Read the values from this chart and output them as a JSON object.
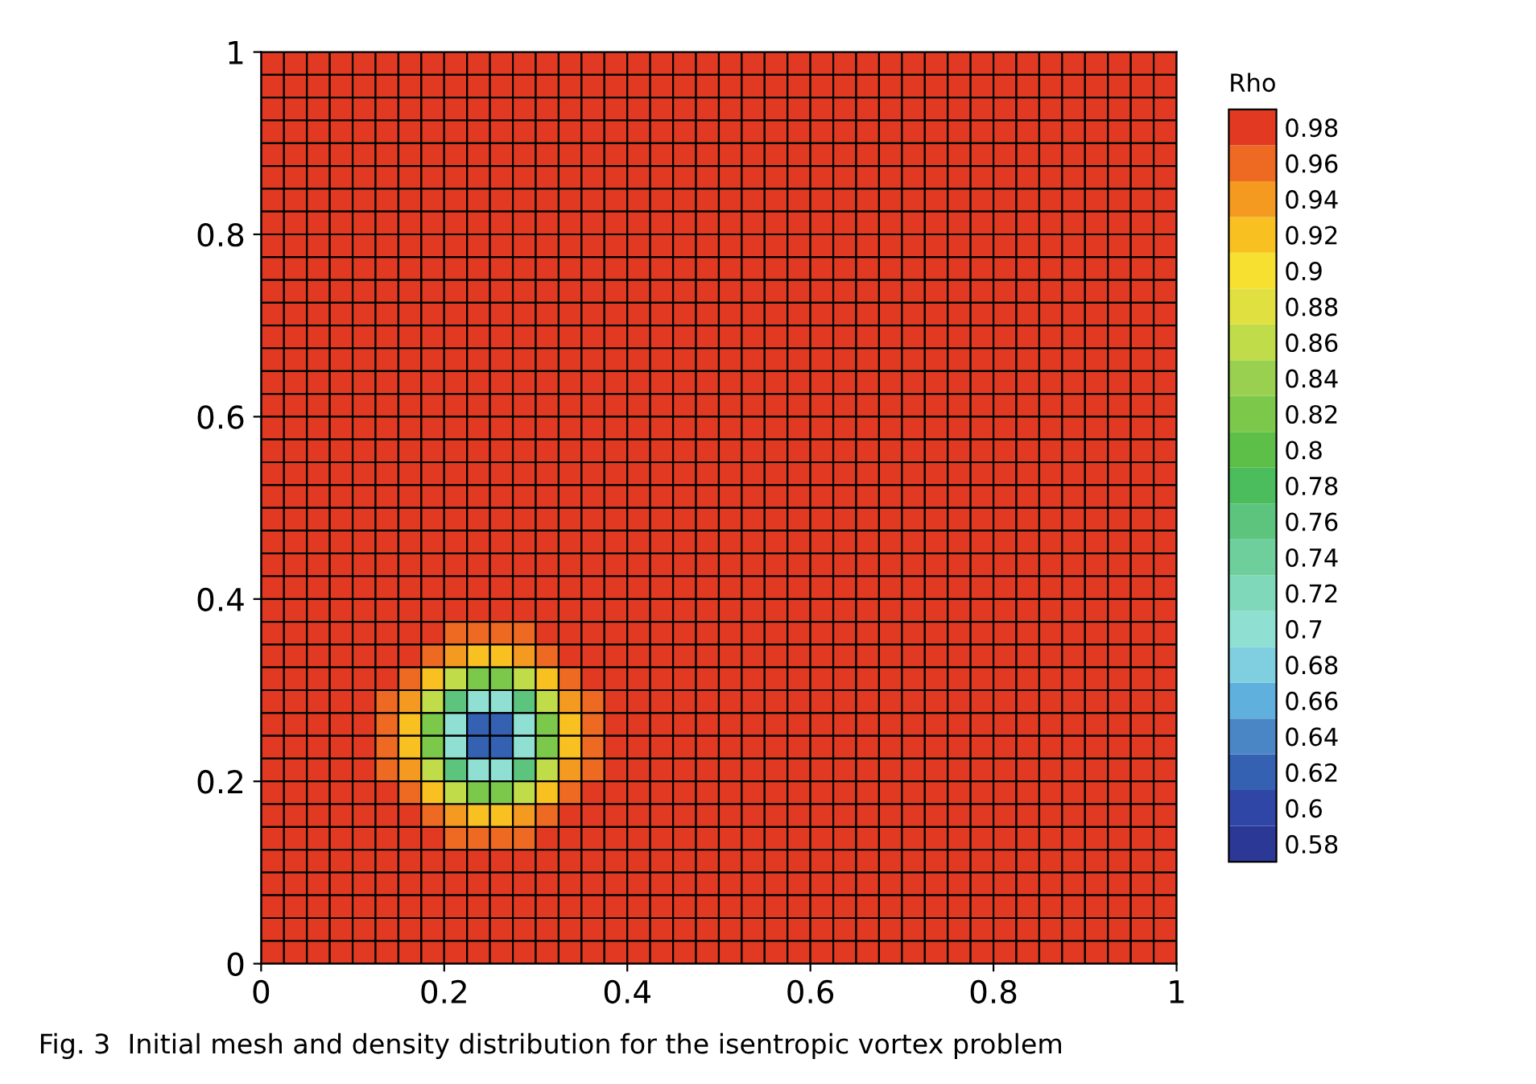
{
  "chart_data": {
    "type": "heatmap",
    "clabel": "Rho",
    "annotations": [
      "Fig. 3  Initial mesh and density distribution for the isentropic vortex problem"
    ],
    "x": [
      0.0125,
      0.0375,
      0.0625,
      0.0875,
      0.1125,
      0.1375,
      0.1625,
      0.1875,
      0.2125,
      0.2375,
      0.2625,
      0.2875,
      0.3125,
      0.3375,
      0.3625,
      0.3875,
      0.4125,
      0.4375,
      0.4625,
      0.4875,
      0.5125,
      0.5375,
      0.5625,
      0.5875,
      0.6125,
      0.6375,
      0.6625,
      0.6875,
      0.7125,
      0.7375,
      0.7625,
      0.7875,
      0.8125,
      0.8375,
      0.8625,
      0.8875,
      0.9125,
      0.9375,
      0.9625,
      0.9875
    ],
    "y": [
      0.9875,
      0.9625,
      0.9375,
      0.9125,
      0.8875,
      0.8625,
      0.8375,
      0.8125,
      0.7875,
      0.7625,
      0.7375,
      0.7125,
      0.6875,
      0.6625,
      0.6375,
      0.6125,
      0.5875,
      0.5625,
      0.5375,
      0.5125,
      0.4875,
      0.4625,
      0.4375,
      0.4125,
      0.3875,
      0.3625,
      0.3375,
      0.3125,
      0.2875,
      0.2625,
      0.2375,
      0.2125,
      0.1875,
      0.1625,
      0.1375,
      0.1125,
      0.0875,
      0.0625,
      0.0375,
      0.0125
    ],
    "xlim": [
      0,
      1
    ],
    "ylim": [
      0,
      1
    ],
    "xticks": [
      0,
      0.2,
      0.4,
      0.6,
      0.8,
      1
    ],
    "yticks": [
      0,
      0.2,
      0.4,
      0.6,
      0.8,
      1
    ],
    "clim": [
      0.57,
      0.99
    ],
    "cticks": [
      0.58,
      0.6,
      0.62,
      0.64,
      0.66,
      0.68,
      0.7,
      0.72,
      0.74,
      0.76,
      0.78,
      0.8,
      0.82,
      0.84,
      0.86,
      0.88,
      0.9,
      0.92,
      0.94,
      0.96,
      0.98
    ],
    "colors": [
      "#2b3896",
      "#2f46a6",
      "#3461b2",
      "#4a86c6",
      "#5fb0dc",
      "#80cfe0",
      "#8fe0d2",
      "#7fd8ba",
      "#6fcf9c",
      "#5cc47c",
      "#4cbd5c",
      "#5ebf48",
      "#7cc84a",
      "#9ad050",
      "#c0dc48",
      "#e0e040",
      "#f8e030",
      "#f8c020",
      "#f49a20",
      "#ee6a22",
      "#e23a22"
    ],
    "cells": [
      [
        0.98,
        0.98,
        0.98,
        0.98,
        0.98,
        0.98,
        0.98,
        0.98,
        0.98,
        0.98,
        0.98,
        0.98,
        0.98,
        0.98,
        0.98,
        0.98,
        0.98,
        0.98,
        0.98,
        0.98,
        0.98,
        0.98,
        0.98,
        0.98,
        0.98,
        0.98,
        0.98,
        0.98,
        0.98,
        0.98,
        0.98,
        0.98,
        0.98,
        0.98,
        0.98,
        0.98,
        0.98,
        0.98,
        0.98,
        0.98
      ],
      [
        0.98,
        0.98,
        0.98,
        0.98,
        0.98,
        0.98,
        0.98,
        0.98,
        0.98,
        0.98,
        0.98,
        0.98,
        0.98,
        0.98,
        0.98,
        0.98,
        0.98,
        0.98,
        0.98,
        0.98,
        0.98,
        0.98,
        0.98,
        0.98,
        0.98,
        0.98,
        0.98,
        0.98,
        0.98,
        0.98,
        0.98,
        0.98,
        0.98,
        0.98,
        0.98,
        0.98,
        0.98,
        0.98,
        0.98,
        0.98
      ],
      [
        0.98,
        0.98,
        0.98,
        0.98,
        0.98,
        0.98,
        0.98,
        0.98,
        0.98,
        0.98,
        0.98,
        0.98,
        0.98,
        0.98,
        0.98,
        0.98,
        0.98,
        0.98,
        0.98,
        0.98,
        0.98,
        0.98,
        0.98,
        0.98,
        0.98,
        0.98,
        0.98,
        0.98,
        0.98,
        0.98,
        0.98,
        0.98,
        0.98,
        0.98,
        0.98,
        0.98,
        0.98,
        0.98,
        0.98,
        0.98
      ],
      [
        0.98,
        0.98,
        0.98,
        0.98,
        0.98,
        0.98,
        0.98,
        0.98,
        0.98,
        0.98,
        0.98,
        0.98,
        0.98,
        0.98,
        0.98,
        0.98,
        0.98,
        0.98,
        0.98,
        0.98,
        0.98,
        0.98,
        0.98,
        0.98,
        0.98,
        0.98,
        0.98,
        0.98,
        0.98,
        0.98,
        0.98,
        0.98,
        0.98,
        0.98,
        0.98,
        0.98,
        0.98,
        0.98,
        0.98,
        0.98
      ],
      [
        0.98,
        0.98,
        0.98,
        0.98,
        0.98,
        0.98,
        0.98,
        0.98,
        0.98,
        0.98,
        0.98,
        0.98,
        0.98,
        0.98,
        0.98,
        0.98,
        0.98,
        0.98,
        0.98,
        0.98,
        0.98,
        0.98,
        0.98,
        0.98,
        0.98,
        0.98,
        0.98,
        0.98,
        0.98,
        0.98,
        0.98,
        0.98,
        0.98,
        0.98,
        0.98,
        0.98,
        0.98,
        0.98,
        0.98,
        0.98
      ],
      [
        0.98,
        0.98,
        0.98,
        0.98,
        0.98,
        0.98,
        0.98,
        0.98,
        0.98,
        0.98,
        0.98,
        0.98,
        0.98,
        0.98,
        0.98,
        0.98,
        0.98,
        0.98,
        0.98,
        0.98,
        0.98,
        0.98,
        0.98,
        0.98,
        0.98,
        0.98,
        0.98,
        0.98,
        0.98,
        0.98,
        0.98,
        0.98,
        0.98,
        0.98,
        0.98,
        0.98,
        0.98,
        0.98,
        0.98,
        0.98
      ],
      [
        0.98,
        0.98,
        0.98,
        0.98,
        0.98,
        0.98,
        0.98,
        0.98,
        0.98,
        0.98,
        0.98,
        0.98,
        0.98,
        0.98,
        0.98,
        0.98,
        0.98,
        0.98,
        0.98,
        0.98,
        0.98,
        0.98,
        0.98,
        0.98,
        0.98,
        0.98,
        0.98,
        0.98,
        0.98,
        0.98,
        0.98,
        0.98,
        0.98,
        0.98,
        0.98,
        0.98,
        0.98,
        0.98,
        0.98,
        0.98
      ],
      [
        0.98,
        0.98,
        0.98,
        0.98,
        0.98,
        0.98,
        0.98,
        0.98,
        0.98,
        0.98,
        0.98,
        0.98,
        0.98,
        0.98,
        0.98,
        0.98,
        0.98,
        0.98,
        0.98,
        0.98,
        0.98,
        0.98,
        0.98,
        0.98,
        0.98,
        0.98,
        0.98,
        0.98,
        0.98,
        0.98,
        0.98,
        0.98,
        0.98,
        0.98,
        0.98,
        0.98,
        0.98,
        0.98,
        0.98,
        0.98
      ],
      [
        0.98,
        0.98,
        0.98,
        0.98,
        0.98,
        0.98,
        0.98,
        0.98,
        0.98,
        0.98,
        0.98,
        0.98,
        0.98,
        0.98,
        0.98,
        0.98,
        0.98,
        0.98,
        0.98,
        0.98,
        0.98,
        0.98,
        0.98,
        0.98,
        0.98,
        0.98,
        0.98,
        0.98,
        0.98,
        0.98,
        0.98,
        0.98,
        0.98,
        0.98,
        0.98,
        0.98,
        0.98,
        0.98,
        0.98,
        0.98
      ],
      [
        0.98,
        0.98,
        0.98,
        0.98,
        0.98,
        0.98,
        0.98,
        0.98,
        0.98,
        0.98,
        0.98,
        0.98,
        0.98,
        0.98,
        0.98,
        0.98,
        0.98,
        0.98,
        0.98,
        0.98,
        0.98,
        0.98,
        0.98,
        0.98,
        0.98,
        0.98,
        0.98,
        0.98,
        0.98,
        0.98,
        0.98,
        0.98,
        0.98,
        0.98,
        0.98,
        0.98,
        0.98,
        0.98,
        0.98,
        0.98
      ],
      [
        0.98,
        0.98,
        0.98,
        0.98,
        0.98,
        0.98,
        0.98,
        0.98,
        0.98,
        0.98,
        0.98,
        0.98,
        0.98,
        0.98,
        0.98,
        0.98,
        0.98,
        0.98,
        0.98,
        0.98,
        0.98,
        0.98,
        0.98,
        0.98,
        0.98,
        0.98,
        0.98,
        0.98,
        0.98,
        0.98,
        0.98,
        0.98,
        0.98,
        0.98,
        0.98,
        0.98,
        0.98,
        0.98,
        0.98,
        0.98
      ],
      [
        0.98,
        0.98,
        0.98,
        0.98,
        0.98,
        0.98,
        0.98,
        0.98,
        0.98,
        0.98,
        0.98,
        0.98,
        0.98,
        0.98,
        0.98,
        0.98,
        0.98,
        0.98,
        0.98,
        0.98,
        0.98,
        0.98,
        0.98,
        0.98,
        0.98,
        0.98,
        0.98,
        0.98,
        0.98,
        0.98,
        0.98,
        0.98,
        0.98,
        0.98,
        0.98,
        0.98,
        0.98,
        0.98,
        0.98,
        0.98
      ],
      [
        0.98,
        0.98,
        0.98,
        0.98,
        0.98,
        0.98,
        0.98,
        0.98,
        0.98,
        0.98,
        0.98,
        0.98,
        0.98,
        0.98,
        0.98,
        0.98,
        0.98,
        0.98,
        0.98,
        0.98,
        0.98,
        0.98,
        0.98,
        0.98,
        0.98,
        0.98,
        0.98,
        0.98,
        0.98,
        0.98,
        0.98,
        0.98,
        0.98,
        0.98,
        0.98,
        0.98,
        0.98,
        0.98,
        0.98,
        0.98
      ],
      [
        0.98,
        0.98,
        0.98,
        0.98,
        0.98,
        0.98,
        0.98,
        0.98,
        0.98,
        0.98,
        0.98,
        0.98,
        0.98,
        0.98,
        0.98,
        0.98,
        0.98,
        0.98,
        0.98,
        0.98,
        0.98,
        0.98,
        0.98,
        0.98,
        0.98,
        0.98,
        0.98,
        0.98,
        0.98,
        0.98,
        0.98,
        0.98,
        0.98,
        0.98,
        0.98,
        0.98,
        0.98,
        0.98,
        0.98,
        0.98
      ],
      [
        0.98,
        0.98,
        0.98,
        0.98,
        0.98,
        0.98,
        0.98,
        0.98,
        0.98,
        0.98,
        0.98,
        0.98,
        0.98,
        0.98,
        0.98,
        0.98,
        0.98,
        0.98,
        0.98,
        0.98,
        0.98,
        0.98,
        0.98,
        0.98,
        0.98,
        0.98,
        0.98,
        0.98,
        0.98,
        0.98,
        0.98,
        0.98,
        0.98,
        0.98,
        0.98,
        0.98,
        0.98,
        0.98,
        0.98,
        0.98
      ],
      [
        0.98,
        0.98,
        0.98,
        0.98,
        0.98,
        0.98,
        0.98,
        0.98,
        0.98,
        0.98,
        0.98,
        0.98,
        0.98,
        0.98,
        0.98,
        0.98,
        0.98,
        0.98,
        0.98,
        0.98,
        0.98,
        0.98,
        0.98,
        0.98,
        0.98,
        0.98,
        0.98,
        0.98,
        0.98,
        0.98,
        0.98,
        0.98,
        0.98,
        0.98,
        0.98,
        0.98,
        0.98,
        0.98,
        0.98,
        0.98
      ],
      [
        0.98,
        0.98,
        0.98,
        0.98,
        0.98,
        0.98,
        0.98,
        0.98,
        0.98,
        0.98,
        0.98,
        0.98,
        0.98,
        0.98,
        0.98,
        0.98,
        0.98,
        0.98,
        0.98,
        0.98,
        0.98,
        0.98,
        0.98,
        0.98,
        0.98,
        0.98,
        0.98,
        0.98,
        0.98,
        0.98,
        0.98,
        0.98,
        0.98,
        0.98,
        0.98,
        0.98,
        0.98,
        0.98,
        0.98,
        0.98
      ],
      [
        0.98,
        0.98,
        0.98,
        0.98,
        0.98,
        0.98,
        0.98,
        0.98,
        0.98,
        0.98,
        0.98,
        0.98,
        0.98,
        0.98,
        0.98,
        0.98,
        0.98,
        0.98,
        0.98,
        0.98,
        0.98,
        0.98,
        0.98,
        0.98,
        0.98,
        0.98,
        0.98,
        0.98,
        0.98,
        0.98,
        0.98,
        0.98,
        0.98,
        0.98,
        0.98,
        0.98,
        0.98,
        0.98,
        0.98,
        0.98
      ],
      [
        0.98,
        0.98,
        0.98,
        0.98,
        0.98,
        0.98,
        0.98,
        0.98,
        0.98,
        0.98,
        0.98,
        0.98,
        0.98,
        0.98,
        0.98,
        0.98,
        0.98,
        0.98,
        0.98,
        0.98,
        0.98,
        0.98,
        0.98,
        0.98,
        0.98,
        0.98,
        0.98,
        0.98,
        0.98,
        0.98,
        0.98,
        0.98,
        0.98,
        0.98,
        0.98,
        0.98,
        0.98,
        0.98,
        0.98,
        0.98
      ],
      [
        0.98,
        0.98,
        0.98,
        0.98,
        0.98,
        0.98,
        0.98,
        0.98,
        0.98,
        0.98,
        0.98,
        0.98,
        0.98,
        0.98,
        0.98,
        0.98,
        0.98,
        0.98,
        0.98,
        0.98,
        0.98,
        0.98,
        0.98,
        0.98,
        0.98,
        0.98,
        0.98,
        0.98,
        0.98,
        0.98,
        0.98,
        0.98,
        0.98,
        0.98,
        0.98,
        0.98,
        0.98,
        0.98,
        0.98,
        0.98
      ],
      [
        0.98,
        0.98,
        0.98,
        0.98,
        0.98,
        0.98,
        0.98,
        0.98,
        0.98,
        0.98,
        0.98,
        0.98,
        0.98,
        0.98,
        0.98,
        0.98,
        0.98,
        0.98,
        0.98,
        0.98,
        0.98,
        0.98,
        0.98,
        0.98,
        0.98,
        0.98,
        0.98,
        0.98,
        0.98,
        0.98,
        0.98,
        0.98,
        0.98,
        0.98,
        0.98,
        0.98,
        0.98,
        0.98,
        0.98,
        0.98
      ],
      [
        0.98,
        0.98,
        0.98,
        0.98,
        0.98,
        0.98,
        0.98,
        0.98,
        0.98,
        0.98,
        0.98,
        0.98,
        0.98,
        0.98,
        0.98,
        0.98,
        0.98,
        0.98,
        0.98,
        0.98,
        0.98,
        0.98,
        0.98,
        0.98,
        0.98,
        0.98,
        0.98,
        0.98,
        0.98,
        0.98,
        0.98,
        0.98,
        0.98,
        0.98,
        0.98,
        0.98,
        0.98,
        0.98,
        0.98,
        0.98
      ],
      [
        0.98,
        0.98,
        0.98,
        0.98,
        0.98,
        0.98,
        0.98,
        0.98,
        0.98,
        0.98,
        0.98,
        0.98,
        0.98,
        0.98,
        0.98,
        0.98,
        0.98,
        0.98,
        0.98,
        0.98,
        0.98,
        0.98,
        0.98,
        0.98,
        0.98,
        0.98,
        0.98,
        0.98,
        0.98,
        0.98,
        0.98,
        0.98,
        0.98,
        0.98,
        0.98,
        0.98,
        0.98,
        0.98,
        0.98,
        0.98
      ],
      [
        0.98,
        0.98,
        0.98,
        0.98,
        0.98,
        0.98,
        0.98,
        0.98,
        0.98,
        0.98,
        0.98,
        0.98,
        0.98,
        0.98,
        0.98,
        0.98,
        0.98,
        0.98,
        0.98,
        0.98,
        0.98,
        0.98,
        0.98,
        0.98,
        0.98,
        0.98,
        0.98,
        0.98,
        0.98,
        0.98,
        0.98,
        0.98,
        0.98,
        0.98,
        0.98,
        0.98,
        0.98,
        0.98,
        0.98,
        0.98
      ],
      [
        0.98,
        0.98,
        0.98,
        0.98,
        0.98,
        0.98,
        0.98,
        0.98,
        0.98,
        0.98,
        0.98,
        0.98,
        0.98,
        0.98,
        0.98,
        0.98,
        0.98,
        0.98,
        0.98,
        0.98,
        0.98,
        0.98,
        0.98,
        0.98,
        0.98,
        0.98,
        0.98,
        0.98,
        0.98,
        0.98,
        0.98,
        0.98,
        0.98,
        0.98,
        0.98,
        0.98,
        0.98,
        0.98,
        0.98,
        0.98
      ],
      [
        0.98,
        0.98,
        0.98,
        0.98,
        0.98,
        0.98,
        0.98,
        0.98,
        0.96,
        0.96,
        0.96,
        0.96,
        0.98,
        0.98,
        0.98,
        0.98,
        0.98,
        0.98,
        0.98,
        0.98,
        0.98,
        0.98,
        0.98,
        0.98,
        0.98,
        0.98,
        0.98,
        0.98,
        0.98,
        0.98,
        0.98,
        0.98,
        0.98,
        0.98,
        0.98,
        0.98,
        0.98,
        0.98,
        0.98,
        0.98
      ],
      [
        0.98,
        0.98,
        0.98,
        0.98,
        0.98,
        0.98,
        0.98,
        0.96,
        0.94,
        0.92,
        0.92,
        0.94,
        0.96,
        0.98,
        0.98,
        0.98,
        0.98,
        0.98,
        0.98,
        0.98,
        0.98,
        0.98,
        0.98,
        0.98,
        0.98,
        0.98,
        0.98,
        0.98,
        0.98,
        0.98,
        0.98,
        0.98,
        0.98,
        0.98,
        0.98,
        0.98,
        0.98,
        0.98,
        0.98,
        0.98
      ],
      [
        0.98,
        0.98,
        0.98,
        0.98,
        0.98,
        0.98,
        0.96,
        0.92,
        0.86,
        0.82,
        0.82,
        0.86,
        0.92,
        0.96,
        0.98,
        0.98,
        0.98,
        0.98,
        0.98,
        0.98,
        0.98,
        0.98,
        0.98,
        0.98,
        0.98,
        0.98,
        0.98,
        0.98,
        0.98,
        0.98,
        0.98,
        0.98,
        0.98,
        0.98,
        0.98,
        0.98,
        0.98,
        0.98,
        0.98,
        0.98
      ],
      [
        0.98,
        0.98,
        0.98,
        0.98,
        0.98,
        0.96,
        0.94,
        0.86,
        0.76,
        0.7,
        0.7,
        0.76,
        0.86,
        0.94,
        0.96,
        0.98,
        0.98,
        0.98,
        0.98,
        0.98,
        0.98,
        0.98,
        0.98,
        0.98,
        0.98,
        0.98,
        0.98,
        0.98,
        0.98,
        0.98,
        0.98,
        0.98,
        0.98,
        0.98,
        0.98,
        0.98,
        0.98,
        0.98,
        0.98,
        0.98
      ],
      [
        0.98,
        0.98,
        0.98,
        0.98,
        0.98,
        0.96,
        0.92,
        0.82,
        0.7,
        0.62,
        0.62,
        0.7,
        0.82,
        0.92,
        0.96,
        0.98,
        0.98,
        0.98,
        0.98,
        0.98,
        0.98,
        0.98,
        0.98,
        0.98,
        0.98,
        0.98,
        0.98,
        0.98,
        0.98,
        0.98,
        0.98,
        0.98,
        0.98,
        0.98,
        0.98,
        0.98,
        0.98,
        0.98,
        0.98,
        0.98
      ],
      [
        0.98,
        0.98,
        0.98,
        0.98,
        0.98,
        0.96,
        0.92,
        0.82,
        0.7,
        0.62,
        0.62,
        0.7,
        0.82,
        0.92,
        0.96,
        0.98,
        0.98,
        0.98,
        0.98,
        0.98,
        0.98,
        0.98,
        0.98,
        0.98,
        0.98,
        0.98,
        0.98,
        0.98,
        0.98,
        0.98,
        0.98,
        0.98,
        0.98,
        0.98,
        0.98,
        0.98,
        0.98,
        0.98,
        0.98,
        0.98
      ],
      [
        0.98,
        0.98,
        0.98,
        0.98,
        0.98,
        0.96,
        0.94,
        0.86,
        0.76,
        0.7,
        0.7,
        0.76,
        0.86,
        0.94,
        0.96,
        0.98,
        0.98,
        0.98,
        0.98,
        0.98,
        0.98,
        0.98,
        0.98,
        0.98,
        0.98,
        0.98,
        0.98,
        0.98,
        0.98,
        0.98,
        0.98,
        0.98,
        0.98,
        0.98,
        0.98,
        0.98,
        0.98,
        0.98,
        0.98,
        0.98
      ],
      [
        0.98,
        0.98,
        0.98,
        0.98,
        0.98,
        0.98,
        0.96,
        0.92,
        0.86,
        0.82,
        0.82,
        0.86,
        0.92,
        0.96,
        0.98,
        0.98,
        0.98,
        0.98,
        0.98,
        0.98,
        0.98,
        0.98,
        0.98,
        0.98,
        0.98,
        0.98,
        0.98,
        0.98,
        0.98,
        0.98,
        0.98,
        0.98,
        0.98,
        0.98,
        0.98,
        0.98,
        0.98,
        0.98,
        0.98,
        0.98
      ],
      [
        0.98,
        0.98,
        0.98,
        0.98,
        0.98,
        0.98,
        0.98,
        0.96,
        0.94,
        0.92,
        0.92,
        0.94,
        0.96,
        0.98,
        0.98,
        0.98,
        0.98,
        0.98,
        0.98,
        0.98,
        0.98,
        0.98,
        0.98,
        0.98,
        0.98,
        0.98,
        0.98,
        0.98,
        0.98,
        0.98,
        0.98,
        0.98,
        0.98,
        0.98,
        0.98,
        0.98,
        0.98,
        0.98,
        0.98,
        0.98
      ],
      [
        0.98,
        0.98,
        0.98,
        0.98,
        0.98,
        0.98,
        0.98,
        0.98,
        0.96,
        0.96,
        0.96,
        0.96,
        0.98,
        0.98,
        0.98,
        0.98,
        0.98,
        0.98,
        0.98,
        0.98,
        0.98,
        0.98,
        0.98,
        0.98,
        0.98,
        0.98,
        0.98,
        0.98,
        0.98,
        0.98,
        0.98,
        0.98,
        0.98,
        0.98,
        0.98,
        0.98,
        0.98,
        0.98,
        0.98,
        0.98
      ],
      [
        0.98,
        0.98,
        0.98,
        0.98,
        0.98,
        0.98,
        0.98,
        0.98,
        0.98,
        0.98,
        0.98,
        0.98,
        0.98,
        0.98,
        0.98,
        0.98,
        0.98,
        0.98,
        0.98,
        0.98,
        0.98,
        0.98,
        0.98,
        0.98,
        0.98,
        0.98,
        0.98,
        0.98,
        0.98,
        0.98,
        0.98,
        0.98,
        0.98,
        0.98,
        0.98,
        0.98,
        0.98,
        0.98,
        0.98,
        0.98
      ],
      [
        0.98,
        0.98,
        0.98,
        0.98,
        0.98,
        0.98,
        0.98,
        0.98,
        0.98,
        0.98,
        0.98,
        0.98,
        0.98,
        0.98,
        0.98,
        0.98,
        0.98,
        0.98,
        0.98,
        0.98,
        0.98,
        0.98,
        0.98,
        0.98,
        0.98,
        0.98,
        0.98,
        0.98,
        0.98,
        0.98,
        0.98,
        0.98,
        0.98,
        0.98,
        0.98,
        0.98,
        0.98,
        0.98,
        0.98,
        0.98
      ],
      [
        0.98,
        0.98,
        0.98,
        0.98,
        0.98,
        0.98,
        0.98,
        0.98,
        0.98,
        0.98,
        0.98,
        0.98,
        0.98,
        0.98,
        0.98,
        0.98,
        0.98,
        0.98,
        0.98,
        0.98,
        0.98,
        0.98,
        0.98,
        0.98,
        0.98,
        0.98,
        0.98,
        0.98,
        0.98,
        0.98,
        0.98,
        0.98,
        0.98,
        0.98,
        0.98,
        0.98,
        0.98,
        0.98,
        0.98,
        0.98
      ],
      [
        0.98,
        0.98,
        0.98,
        0.98,
        0.98,
        0.98,
        0.98,
        0.98,
        0.98,
        0.98,
        0.98,
        0.98,
        0.98,
        0.98,
        0.98,
        0.98,
        0.98,
        0.98,
        0.98,
        0.98,
        0.98,
        0.98,
        0.98,
        0.98,
        0.98,
        0.98,
        0.98,
        0.98,
        0.98,
        0.98,
        0.98,
        0.98,
        0.98,
        0.98,
        0.98,
        0.98,
        0.98,
        0.98,
        0.98,
        0.98
      ],
      [
        0.98,
        0.98,
        0.98,
        0.98,
        0.98,
        0.98,
        0.98,
        0.98,
        0.98,
        0.98,
        0.98,
        0.98,
        0.98,
        0.98,
        0.98,
        0.98,
        0.98,
        0.98,
        0.98,
        0.98,
        0.98,
        0.98,
        0.98,
        0.98,
        0.98,
        0.98,
        0.98,
        0.98,
        0.98,
        0.98,
        0.98,
        0.98,
        0.98,
        0.98,
        0.98,
        0.98,
        0.98,
        0.98,
        0.98,
        0.98
      ]
    ]
  }
}
